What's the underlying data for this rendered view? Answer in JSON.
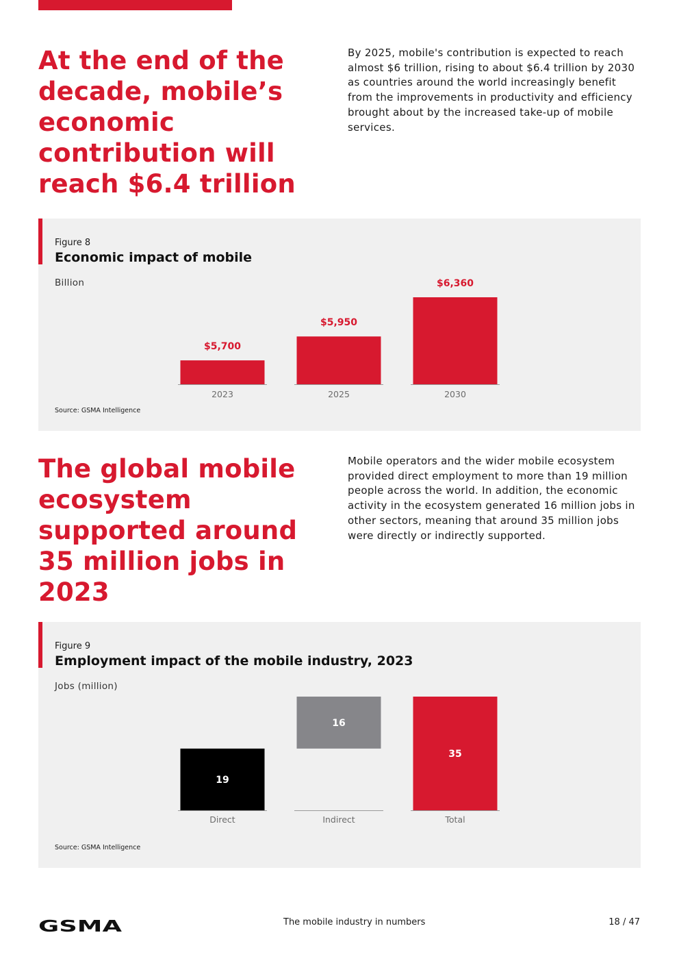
{
  "section1": {
    "headline": "At the end of the decade, mobile’s economic contribution will reach $6.4 trillion",
    "intro": "By 2025, mobile's contribution is expected to reach almost $6 trillion, rising to about $6.4 trillion by 2030 as countries around the world increasingly benefit from the improvements in productivity and efficiency brought about by the increased take-up of mobile services."
  },
  "figure8": {
    "number": "Figure 8",
    "title": "Economic impact of mobile",
    "unit": "Billion",
    "source": "Source: GSMA Intelligence"
  },
  "section2": {
    "headline": "The global mobile ecosystem supported around 35 million jobs in 2023",
    "intro": "Mobile operators and the wider mobile ecosystem provided direct employment to more than 19 million people across the world. In addition, the economic activity in the ecosystem generated 16 million jobs in other sectors, meaning that around 35 million jobs were directly or indirectly supported."
  },
  "figure9": {
    "number": "Figure 9",
    "title": "Employment impact of the mobile industry, 2023",
    "unit": "Jobs (million)",
    "source": "Source: GSMA Intelligence"
  },
  "footer": {
    "logo": "GSMA",
    "title": "The mobile industry in numbers",
    "page": "18 / 47"
  },
  "colors": {
    "accent": "#d7192f",
    "panel": "#f0f0f0",
    "direct": "#000000",
    "indirect": "#86868a",
    "total": "#d7192f"
  },
  "chart_data": [
    {
      "type": "bar",
      "title": "Economic impact of mobile",
      "ylabel": "Billion",
      "categories": [
        "2023",
        "2025",
        "2030"
      ],
      "values": [
        5700,
        5950,
        6360
      ],
      "data_labels": [
        "$5,700",
        "$5,950",
        "$6,360"
      ],
      "ylim": [
        5450,
        6360
      ],
      "grid": false
    },
    {
      "type": "bar",
      "subtype": "waterfall",
      "title": "Employment impact of the mobile industry, 2023",
      "ylabel": "Jobs (million)",
      "categories": [
        "Direct",
        "Indirect",
        "Total"
      ],
      "values": [
        19,
        16,
        35
      ],
      "bases": [
        0,
        19,
        0
      ],
      "data_labels": [
        "19",
        "16",
        "35"
      ],
      "colors": [
        "#000000",
        "#86868a",
        "#d7192f"
      ],
      "ylim": [
        0,
        35
      ],
      "grid": false
    }
  ]
}
